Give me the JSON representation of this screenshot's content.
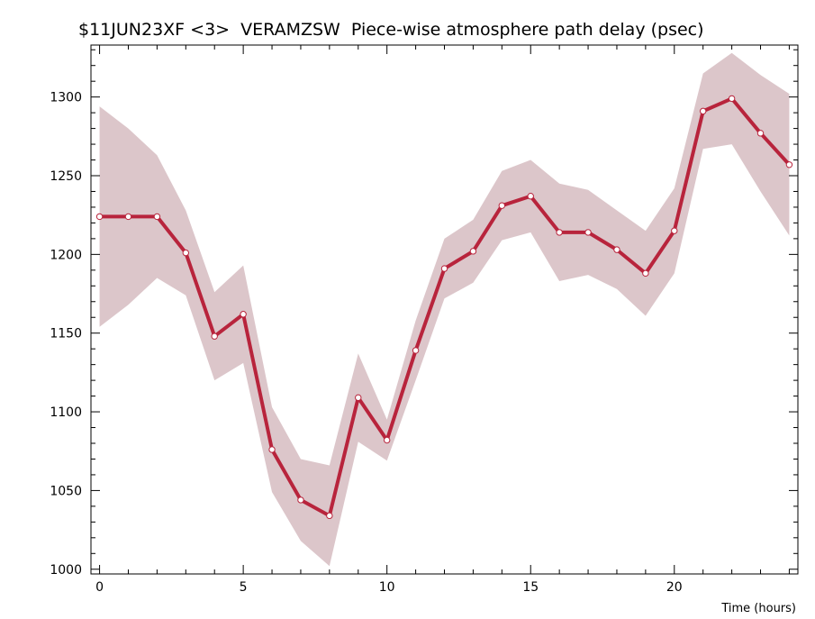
{
  "chart_data": {
    "type": "line",
    "title": "$11JUN23XF <3>  VERAMZSW  Piece-wise atmosphere path delay (psec)",
    "xlabel": "Time (hours)",
    "ylabel": "",
    "xlim": [
      -0.3,
      24.3
    ],
    "ylim": [
      997,
      1333
    ],
    "x_ticks": [
      0,
      5,
      10,
      15,
      20
    ],
    "y_ticks": [
      1000,
      1050,
      1100,
      1150,
      1200,
      1250,
      1300
    ],
    "grid": false,
    "colors": {
      "line": "#b8243c",
      "band": "#dcc6ca",
      "marker_fill": "#ffffff"
    },
    "series": [
      {
        "x": [
          0,
          1,
          2,
          3,
          4,
          5,
          6,
          7,
          8,
          9,
          10,
          11,
          12,
          13,
          14,
          15,
          16,
          17,
          18,
          19,
          20,
          21,
          22,
          23,
          24
        ],
        "values": [
          1224,
          1224,
          1224,
          1201,
          1148,
          1162,
          1076,
          1044,
          1034,
          1109,
          1082,
          1139,
          1191,
          1202,
          1231,
          1237,
          1214,
          1214,
          1203,
          1188,
          1215,
          1291,
          1299,
          1277,
          1257
        ],
        "upper": [
          1294,
          1280,
          1263,
          1228,
          1176,
          1193,
          1103,
          1070,
          1066,
          1137,
          1095,
          1158,
          1210,
          1222,
          1253,
          1260,
          1245,
          1241,
          1228,
          1215,
          1242,
          1315,
          1328,
          1314,
          1302
        ],
        "lower": [
          1154,
          1168,
          1185,
          1174,
          1120,
          1131,
          1049,
          1018,
          1002,
          1081,
          1069,
          1120,
          1172,
          1182,
          1209,
          1214,
          1183,
          1187,
          1178,
          1161,
          1188,
          1267,
          1270,
          1240,
          1212
        ]
      }
    ]
  }
}
